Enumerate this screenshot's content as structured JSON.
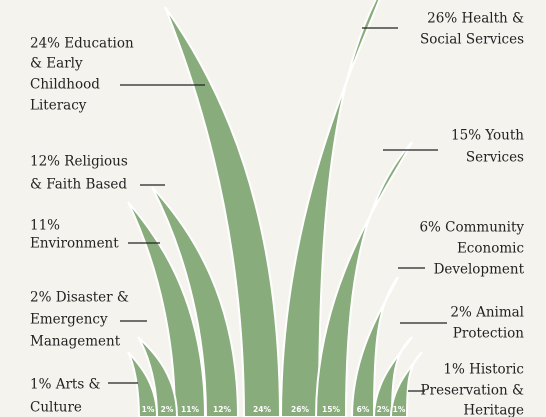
{
  "chart_data": {
    "type": "bar",
    "categories": [
      [
        "1% Arts &",
        "Culture"
      ],
      [
        "2% Disaster &",
        "Emergency",
        "Management"
      ],
      [
        "11%",
        "Environment"
      ],
      [
        "12% Religious",
        "& Faith Based"
      ],
      [
        "24% Education",
        "& Early",
        "Childhood",
        "Literacy"
      ],
      [
        "26% Health &",
        "Social Services"
      ],
      [
        "15% Youth",
        "Services"
      ],
      [
        "6% Community",
        "Economic",
        "Development"
      ],
      [
        "2% Animal",
        "Protection"
      ],
      [
        "1% Historic",
        "Preservation &",
        "Heritage"
      ]
    ],
    "values": [
      1,
      2,
      11,
      12,
      24,
      26,
      15,
      6,
      2,
      1
    ],
    "value_labels": [
      "1%",
      "2%",
      "11%",
      "12%",
      "24%",
      "26%",
      "15%",
      "6%",
      "2%",
      "1%"
    ],
    "color": "#88ac7b"
  }
}
